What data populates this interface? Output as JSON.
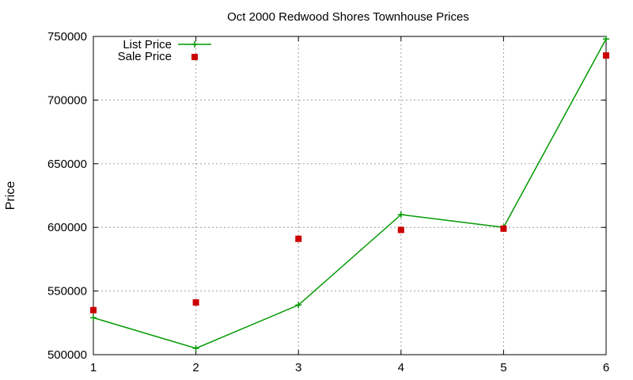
{
  "chart_data": {
    "type": "line",
    "title": "Oct 2000 Redwood Shores Townhouse Prices",
    "xlabel": "",
    "ylabel": "Price",
    "x": [
      1,
      2,
      3,
      4,
      5,
      6
    ],
    "xlim": [
      1,
      6
    ],
    "ylim": [
      500000,
      750000
    ],
    "x_ticks": [
      "1",
      "2",
      "3",
      "4",
      "5",
      "6"
    ],
    "y_ticks": [
      500000,
      550000,
      600000,
      650000,
      700000,
      750000
    ],
    "y_tick_labels": [
      "500000",
      "550000",
      "600000",
      "650000",
      "700000",
      "750000"
    ],
    "grid": true,
    "legend_position": "top-left",
    "series": [
      {
        "name": "List Price",
        "style": "linespoints",
        "marker": "plus",
        "color": "#009900",
        "values": [
          529000,
          505000,
          539000,
          610000,
          600000,
          748000
        ]
      },
      {
        "name": "Sale Price",
        "style": "points",
        "marker": "square",
        "color": "#cc0000",
        "values": [
          535000,
          541000,
          591000,
          598000,
          599000,
          735000
        ]
      }
    ]
  }
}
